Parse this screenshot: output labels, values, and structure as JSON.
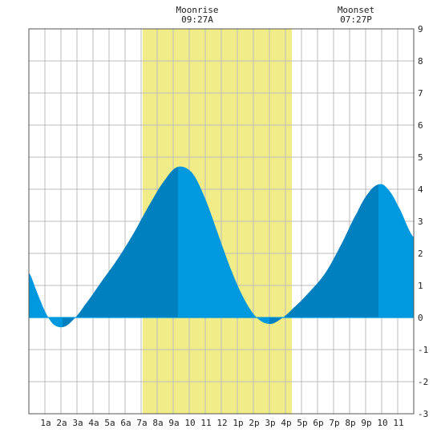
{
  "chart_data": {
    "type": "area",
    "title": "",
    "xlabel": "",
    "ylabel": "",
    "xlim": [
      0,
      24
    ],
    "ylim": [
      -3,
      9
    ],
    "grid": true,
    "yticks": [
      "-3",
      "-2",
      "-1",
      "0",
      "1",
      "2",
      "3",
      "4",
      "5",
      "6",
      "7",
      "8",
      "9"
    ],
    "xtick_labels": [
      "1a",
      "2a",
      "3a",
      "4a",
      "5a",
      "6a",
      "7a",
      "8a",
      "9a",
      "10",
      "11",
      "12",
      "1p",
      "2p",
      "3p",
      "4p",
      "5p",
      "6p",
      "7p",
      "8p",
      "9p",
      "10",
      "11"
    ],
    "moon_window": {
      "start": 7.1,
      "end": 16.4,
      "color": "#f2ec88"
    },
    "annotations": [
      {
        "title": "Moonrise",
        "time": "09:27A",
        "x": 10.5
      },
      {
        "title": "Moonset",
        "time": "07:27P",
        "x": 20.4
      }
    ],
    "colors": {
      "rising": "#0080bf",
      "falling": "#0098de",
      "moon": "#f2ec88",
      "grid": "#bbbbbb"
    },
    "series": [
      {
        "points": [
          [
            0,
            1.4
          ],
          [
            0.5,
            0.8
          ],
          [
            1,
            0.2
          ],
          [
            1.5,
            -0.2
          ],
          [
            2.1,
            -0.3
          ],
          [
            2.7,
            -0.1
          ],
          [
            3.5,
            0.4
          ],
          [
            4.5,
            1.1
          ],
          [
            5.5,
            1.8
          ],
          [
            6.5,
            2.6
          ],
          [
            7.5,
            3.5
          ],
          [
            8.5,
            4.3
          ],
          [
            9.3,
            4.7
          ],
          [
            10.2,
            4.5
          ],
          [
            11,
            3.7
          ],
          [
            11.8,
            2.6
          ],
          [
            12.6,
            1.5
          ],
          [
            13.4,
            0.6
          ],
          [
            14.2,
            0
          ],
          [
            15,
            -0.2
          ],
          [
            15.7,
            -0.05
          ],
          [
            16.5,
            0.3
          ],
          [
            17.5,
            0.8
          ],
          [
            18.5,
            1.4
          ],
          [
            19.5,
            2.3
          ],
          [
            20.5,
            3.3
          ],
          [
            21.2,
            3.9
          ],
          [
            21.8,
            4.15
          ],
          [
            22.3,
            4.05
          ],
          [
            23,
            3.5
          ],
          [
            24,
            2.5
          ]
        ],
        "turning_points": [
          0,
          2.1,
          9.3,
          15,
          21.8,
          24
        ]
      }
    ]
  }
}
